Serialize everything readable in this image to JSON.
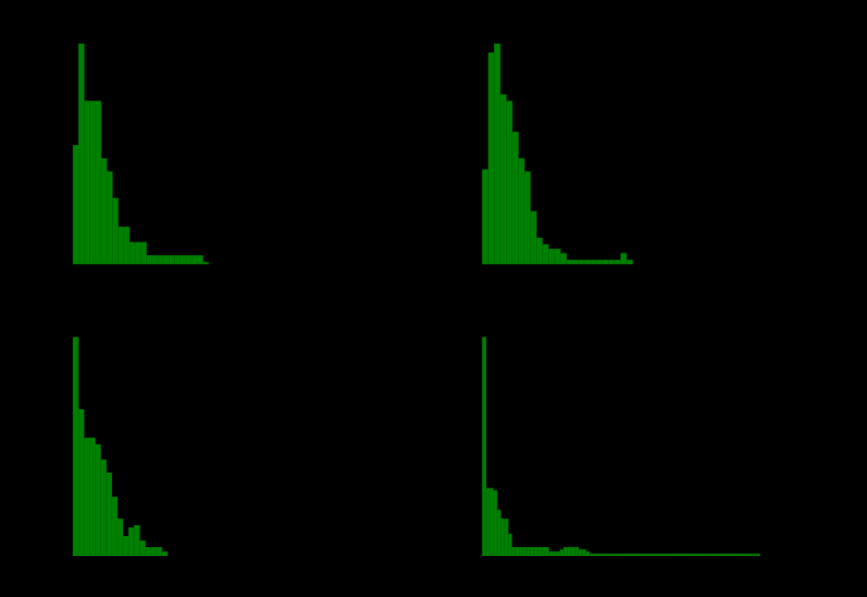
{
  "figure": {
    "background": "#000000",
    "bar_color": "#008000",
    "bar_edge_color": "#006400",
    "axis_color": "#000000"
  },
  "chart_data": [
    {
      "type": "bar",
      "title": "",
      "xlabel": "",
      "ylabel": "",
      "ylim": [
        0,
        1.0
      ],
      "grid": false,
      "legend": "none",
      "bin_start": 0,
      "bin_width": 1,
      "values": [
        0.54,
        1.0,
        0.74,
        0.74,
        0.74,
        0.48,
        0.42,
        0.3,
        0.17,
        0.17,
        0.1,
        0.1,
        0.1,
        0.04,
        0.04,
        0.04,
        0.04,
        0.04,
        0.04,
        0.04,
        0.04,
        0.04,
        0.04,
        0.01
      ]
    },
    {
      "type": "bar",
      "title": "",
      "xlabel": "",
      "ylabel": "",
      "ylim": [
        0,
        1.0
      ],
      "grid": false,
      "legend": "none",
      "bin_start": 0,
      "bin_width": 1,
      "values": [
        0.43,
        0.96,
        1.0,
        0.77,
        0.74,
        0.6,
        0.48,
        0.42,
        0.24,
        0.12,
        0.09,
        0.07,
        0.07,
        0.05,
        0.02,
        0.02,
        0.02,
        0.02,
        0.02,
        0.02,
        0.02,
        0.02,
        0.02,
        0.05,
        0.02
      ]
    },
    {
      "type": "bar",
      "title": "",
      "xlabel": "",
      "ylabel": "",
      "ylim": [
        0,
        1.0
      ],
      "grid": false,
      "legend": "none",
      "bin_start": 0,
      "bin_width": 1,
      "values": [
        1.0,
        0.67,
        0.54,
        0.54,
        0.51,
        0.44,
        0.38,
        0.27,
        0.17,
        0.09,
        0.13,
        0.14,
        0.07,
        0.04,
        0.04,
        0.04,
        0.02,
        0.0,
        0.0
      ]
    },
    {
      "type": "bar",
      "title": "",
      "xlabel": "",
      "ylabel": "",
      "ylim": [
        0,
        1.0
      ],
      "grid": false,
      "legend": "none",
      "bin_start": 0,
      "bin_width": 1,
      "values": [
        1.0,
        0.31,
        0.31,
        0.3,
        0.21,
        0.17,
        0.17,
        0.1,
        0.04,
        0.04,
        0.04,
        0.04,
        0.04,
        0.04,
        0.04,
        0.04,
        0.04,
        0.04,
        0.02,
        0.02,
        0.02,
        0.03,
        0.04,
        0.04,
        0.04,
        0.04,
        0.03,
        0.03,
        0.02,
        0.01,
        0.01,
        0.01,
        0.01,
        0.01,
        0.01,
        0.01,
        0.01,
        0.01,
        0.01,
        0.01,
        0.01,
        0.01,
        0.01,
        0.01,
        0.01,
        0.01,
        0.01,
        0.01,
        0.01,
        0.01,
        0.01,
        0.01,
        0.01,
        0.01,
        0.01,
        0.01,
        0.01,
        0.01,
        0.01,
        0.01,
        0.01,
        0.01,
        0.01,
        0.01,
        0.01,
        0.01,
        0.01,
        0.01,
        0.01,
        0.01,
        0.01,
        0.01,
        0.01,
        0.01,
        0.01
      ]
    }
  ]
}
